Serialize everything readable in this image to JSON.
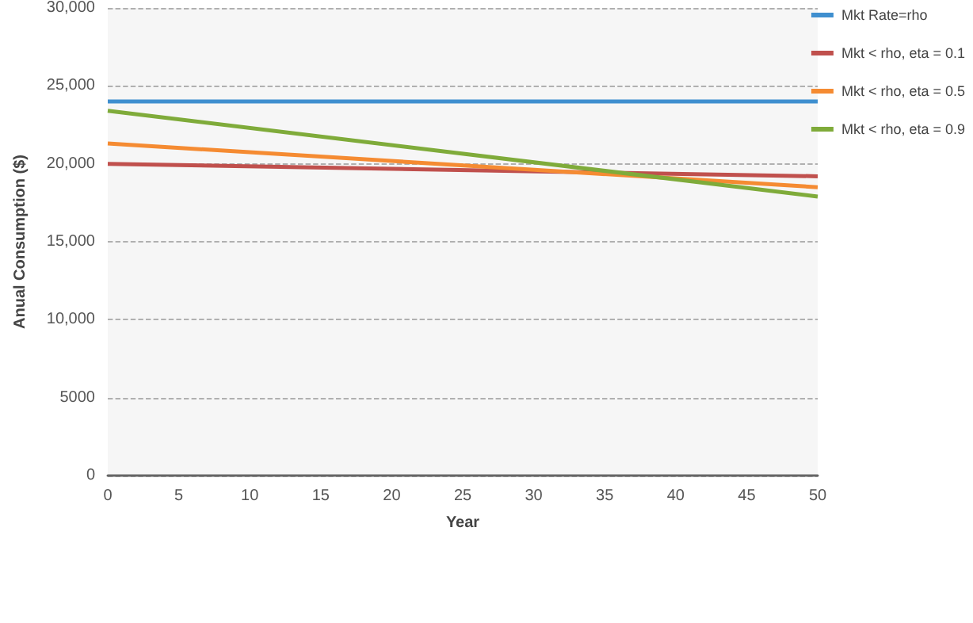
{
  "chart_data": {
    "type": "line",
    "xlabel": "Year",
    "ylabel": "Anual Consumption ($)",
    "x": [
      0,
      50
    ],
    "series": [
      {
        "name": "Mkt Rate=rho",
        "color": "#3f8fcf",
        "values": [
          24000,
          24000
        ]
      },
      {
        "name": "Mkt < rho, eta = 0.1",
        "color": "#c0504d",
        "values": [
          20000,
          19200
        ]
      },
      {
        "name": "Mkt < rho, eta = 0.5",
        "color": "#f58b32",
        "values": [
          21300,
          18500
        ]
      },
      {
        "name": "Mkt < rho, eta = 0.9",
        "color": "#7fab3a",
        "values": [
          23400,
          17900
        ]
      }
    ],
    "xlim": [
      0,
      50
    ],
    "xticks": [
      0,
      5,
      10,
      15,
      20,
      25,
      30,
      35,
      40,
      45,
      50
    ],
    "ylim": [
      0,
      30000
    ],
    "yticks": [
      0,
      5000,
      {
        "value": 10000,
        "label": "10,000"
      },
      {
        "value": 15000,
        "label": "15,000"
      },
      {
        "value": 20000,
        "label": "20,000"
      },
      {
        "value": 25000,
        "label": "25,000"
      },
      {
        "value": 30000,
        "label": "30,000"
      }
    ],
    "grid": "y",
    "legend": "top right",
    "marker": "none",
    "line_style": "solid"
  }
}
